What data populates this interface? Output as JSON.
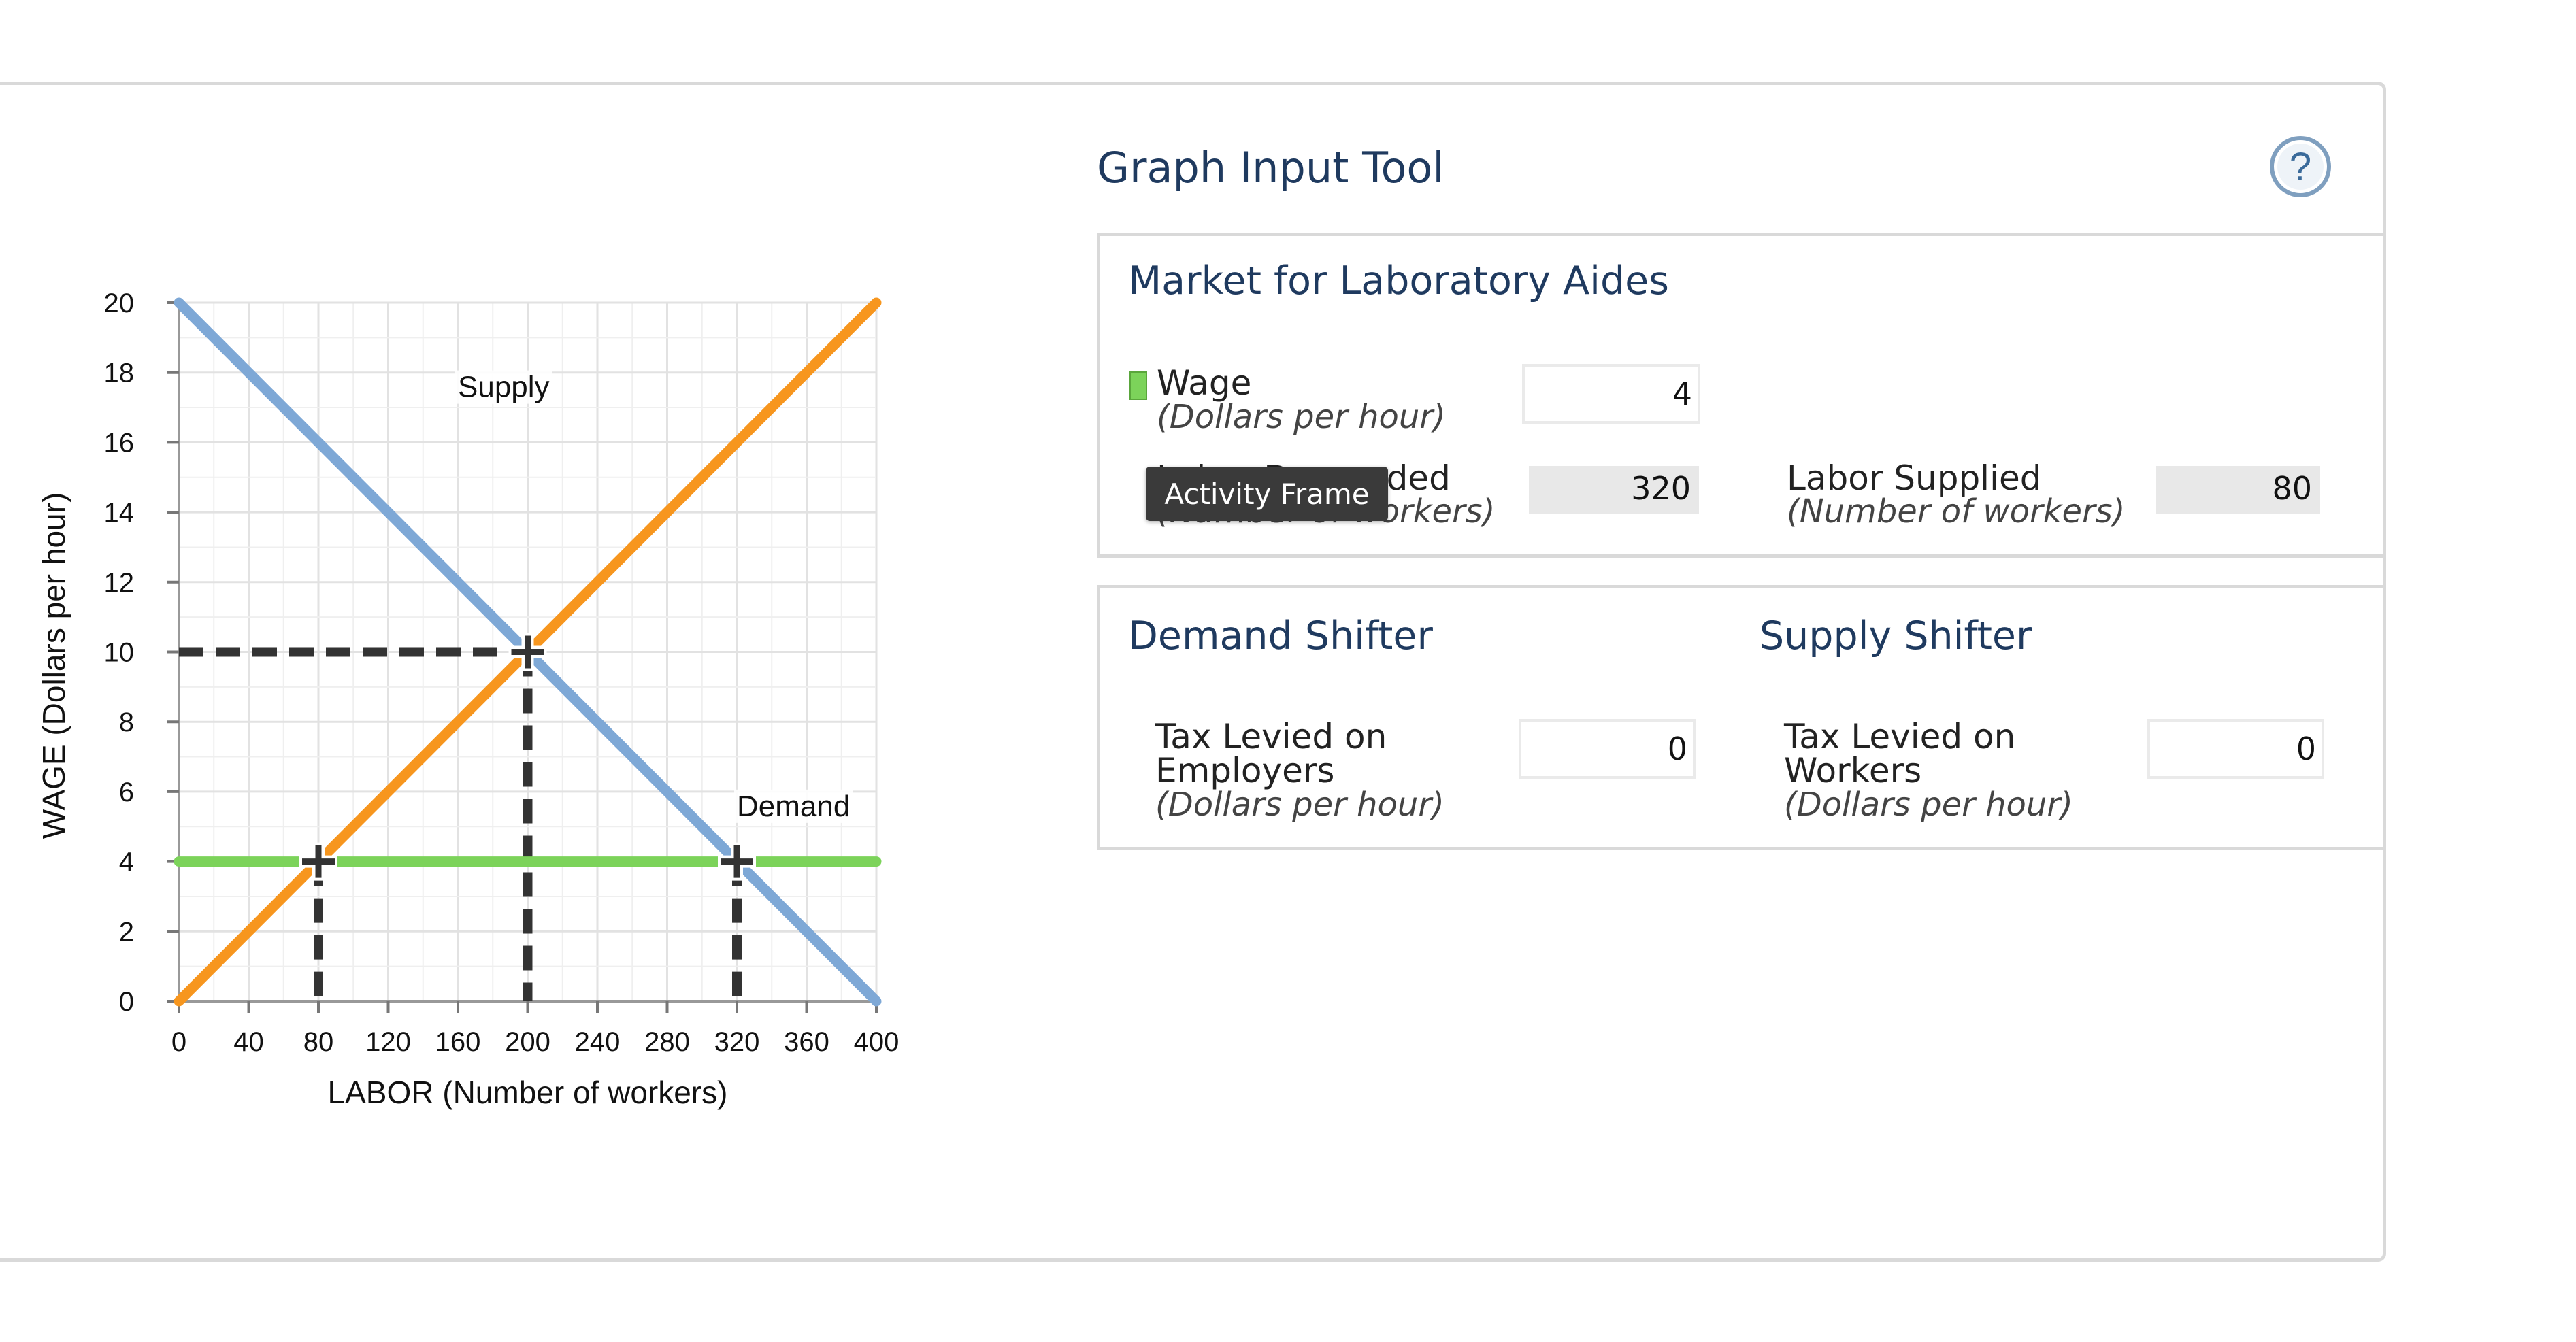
{
  "chart_data": {
    "type": "line",
    "xlabel": "LABOR (Number of workers)",
    "ylabel": "WAGE (Dollars per hour)",
    "xlim": [
      0,
      400
    ],
    "ylim": [
      0,
      20
    ],
    "xticks": [
      0,
      40,
      80,
      120,
      160,
      200,
      240,
      280,
      320,
      360,
      400
    ],
    "yticks": [
      0,
      2,
      4,
      6,
      8,
      10,
      12,
      14,
      16,
      18,
      20
    ],
    "grid": true,
    "series": [
      {
        "name": "Supply",
        "color": "#f7961e",
        "points": [
          [
            0,
            0
          ],
          [
            400,
            20
          ]
        ]
      },
      {
        "name": "Demand",
        "color": "#7ea8d6",
        "points": [
          [
            0,
            20
          ],
          [
            400,
            0
          ]
        ]
      },
      {
        "name": "",
        "color": "#7cd35a",
        "points": [
          [
            0,
            4
          ],
          [
            400,
            4
          ]
        ]
      }
    ],
    "reference_lines": [
      {
        "color": "#333333",
        "points": [
          [
            0,
            10
          ],
          [
            200,
            10
          ]
        ]
      },
      {
        "color": "#333333",
        "points": [
          [
            200,
            10
          ],
          [
            200,
            0
          ]
        ]
      },
      {
        "color": "#333333",
        "points": [
          [
            80,
            4
          ],
          [
            80,
            0
          ]
        ]
      },
      {
        "color": "#333333",
        "points": [
          [
            320,
            4
          ],
          [
            320,
            0
          ]
        ]
      }
    ],
    "markers": [
      [
        200,
        10
      ],
      [
        80,
        4
      ],
      [
        320,
        4
      ]
    ],
    "annotations": [
      {
        "text": "Supply",
        "x": 160,
        "y": 17.3
      },
      {
        "text": "Demand",
        "x": 320,
        "y": 5.3
      }
    ]
  },
  "tool": {
    "title": "Graph Input Tool",
    "help_symbol": "?"
  },
  "market": {
    "title": "Market for Laboratory Aides",
    "wage_label": "Wage",
    "wage_unit": "(Dollars per hour)",
    "wage_value": "4",
    "labor_demanded_label": "Labor Demanded",
    "labor_demanded_unit": "(Number of workers)",
    "labor_demanded_value": "320",
    "labor_supplied_label": "Labor Supplied",
    "labor_supplied_unit": "(Number of workers)",
    "labor_supplied_value": "80",
    "swatch_color": "#7cd35a"
  },
  "demand_shifter": {
    "title": "Demand Shifter",
    "label_line1": "Tax Levied on",
    "label_line2": "Employers",
    "unit": "(Dollars per hour)",
    "value": "0"
  },
  "supply_shifter": {
    "title": "Supply Shifter",
    "label_line1": "Tax Levied on",
    "label_line2": "Workers",
    "unit": "(Dollars per hour)",
    "value": "0"
  },
  "tooltip": {
    "text": "Activity Frame"
  }
}
